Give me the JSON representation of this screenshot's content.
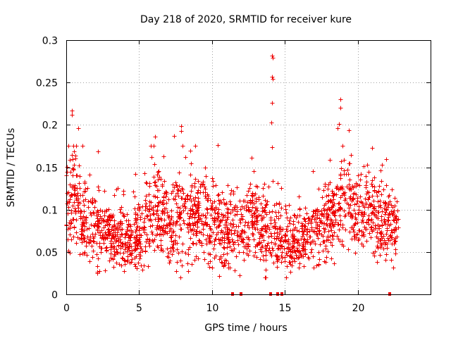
{
  "chart_data": {
    "type": "scatter",
    "title": "Day 218 of 2020, SRMTID for receiver kure",
    "xlabel": "GPS time / hours",
    "ylabel": "SRMTID / TECUs",
    "xlim": [
      0,
      25
    ],
    "ylim": [
      0,
      0.3
    ],
    "x_ticks": [
      0,
      5,
      10,
      15,
      20
    ],
    "y_ticks": [
      0,
      0.05,
      0.1,
      0.15,
      0.2,
      0.25,
      0.3
    ],
    "x_tick_labels": [
      "0",
      "5",
      "10",
      "15",
      "20"
    ],
    "y_tick_labels": [
      "0",
      "0.05",
      "0.1",
      "0.15",
      "0.2",
      "0.25",
      "0.3"
    ],
    "grid": true,
    "series_color": "#ee0000",
    "marker": "plus",
    "zero_points_x": [
      11.4,
      12.0,
      14.0,
      14.5,
      14.8,
      22.2
    ],
    "spikes": [
      {
        "x": 0.4,
        "y": 0.217
      },
      {
        "x": 0.4,
        "y": 0.212
      },
      {
        "x": 0.8,
        "y": 0.196
      },
      {
        "x": 2.2,
        "y": 0.169
      },
      {
        "x": 6.1,
        "y": 0.186
      },
      {
        "x": 7.4,
        "y": 0.187
      },
      {
        "x": 7.9,
        "y": 0.199
      },
      {
        "x": 7.9,
        "y": 0.193
      },
      {
        "x": 10.4,
        "y": 0.176
      },
      {
        "x": 14.1,
        "y": 0.282
      },
      {
        "x": 14.15,
        "y": 0.279
      },
      {
        "x": 14.1,
        "y": 0.257
      },
      {
        "x": 14.15,
        "y": 0.254
      },
      {
        "x": 14.1,
        "y": 0.226
      },
      {
        "x": 14.05,
        "y": 0.203
      },
      {
        "x": 14.1,
        "y": 0.174
      },
      {
        "x": 18.8,
        "y": 0.23
      },
      {
        "x": 18.8,
        "y": 0.22
      },
      {
        "x": 18.7,
        "y": 0.201
      },
      {
        "x": 18.6,
        "y": 0.196
      },
      {
        "x": 19.4,
        "y": 0.194
      },
      {
        "x": 21.0,
        "y": 0.173
      }
    ],
    "density_profile": [
      {
        "x": 0.0,
        "mean": 0.1,
        "spread": 0.05
      },
      {
        "x": 0.5,
        "mean": 0.12,
        "spread": 0.055
      },
      {
        "x": 1.0,
        "mean": 0.085,
        "spread": 0.045
      },
      {
        "x": 2.0,
        "mean": 0.075,
        "spread": 0.04
      },
      {
        "x": 3.0,
        "mean": 0.07,
        "spread": 0.035
      },
      {
        "x": 4.0,
        "mean": 0.065,
        "spread": 0.035
      },
      {
        "x": 5.0,
        "mean": 0.068,
        "spread": 0.038
      },
      {
        "x": 6.0,
        "mean": 0.095,
        "spread": 0.045
      },
      {
        "x": 7.0,
        "mean": 0.085,
        "spread": 0.045
      },
      {
        "x": 8.0,
        "mean": 0.095,
        "spread": 0.05
      },
      {
        "x": 9.0,
        "mean": 0.095,
        "spread": 0.045
      },
      {
        "x": 10.0,
        "mean": 0.09,
        "spread": 0.045
      },
      {
        "x": 11.0,
        "mean": 0.072,
        "spread": 0.038
      },
      {
        "x": 12.0,
        "mean": 0.08,
        "spread": 0.04
      },
      {
        "x": 13.0,
        "mean": 0.085,
        "spread": 0.04
      },
      {
        "x": 14.0,
        "mean": 0.07,
        "spread": 0.04
      },
      {
        "x": 15.0,
        "mean": 0.062,
        "spread": 0.03
      },
      {
        "x": 16.0,
        "mean": 0.065,
        "spread": 0.032
      },
      {
        "x": 17.0,
        "mean": 0.072,
        "spread": 0.035
      },
      {
        "x": 18.0,
        "mean": 0.085,
        "spread": 0.045
      },
      {
        "x": 19.0,
        "mean": 0.11,
        "spread": 0.05
      },
      {
        "x": 20.0,
        "mean": 0.1,
        "spread": 0.045
      },
      {
        "x": 21.0,
        "mean": 0.095,
        "spread": 0.045
      },
      {
        "x": 22.0,
        "mean": 0.08,
        "spread": 0.04
      },
      {
        "x": 22.8,
        "mean": 0.07,
        "spread": 0.03
      }
    ],
    "x_data_range": [
      0.0,
      22.8
    ],
    "approx_point_count": 2300
  }
}
